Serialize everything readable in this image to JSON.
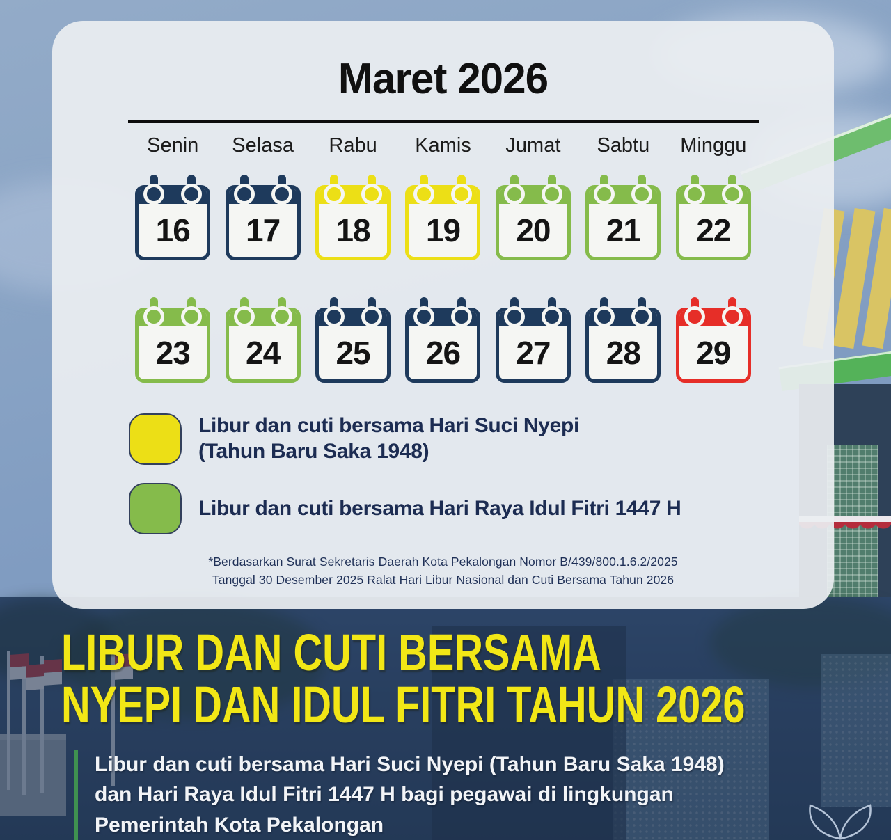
{
  "calendar": {
    "month_title": "Maret 2026",
    "day_headers": [
      "Senin",
      "Selasa",
      "Rabu",
      "Kamis",
      "Jumat",
      "Sabtu",
      "Minggu"
    ],
    "weeks": [
      [
        {
          "day": "16",
          "type": "workday"
        },
        {
          "day": "17",
          "type": "workday"
        },
        {
          "day": "18",
          "type": "nyepi"
        },
        {
          "day": "19",
          "type": "nyepi"
        },
        {
          "day": "20",
          "type": "idulfitri"
        },
        {
          "day": "21",
          "type": "idulfitri"
        },
        {
          "day": "22",
          "type": "idulfitri"
        }
      ],
      [
        {
          "day": "23",
          "type": "idulfitri"
        },
        {
          "day": "24",
          "type": "idulfitri"
        },
        {
          "day": "25",
          "type": "workday"
        },
        {
          "day": "26",
          "type": "workday"
        },
        {
          "day": "27",
          "type": "workday"
        },
        {
          "day": "28",
          "type": "workday"
        },
        {
          "day": "29",
          "type": "sunday"
        }
      ]
    ]
  },
  "legend": [
    {
      "type": "nyepi",
      "label": "Libur dan cuti bersama Hari Suci Nyepi\n(Tahun Baru Saka 1948)"
    },
    {
      "type": "idulfitri",
      "label": "Libur dan cuti bersama Hari Raya Idul Fitri 1447 H"
    }
  ],
  "footnote": {
    "line1": "*Berdasarkan Surat Sekretaris Daerah Kota Pekalongan Nomor B/439/800.1.6.2/2025",
    "line2": "Tanggal 30 Desember 2025 Ralat Hari Libur Nasional dan Cuti Bersama Tahun 2026"
  },
  "banner": {
    "title_line1": "LIBUR DAN CUTI BERSAMA",
    "title_line2": "NYEPI DAN IDUL FITRI TAHUN 2026",
    "description": "Libur dan cuti bersama Hari Suci Nyepi (Tahun Baru Saka 1948)\ndan Hari Raya Idul Fitri 1447 H bagi pegawai di lingkungan\nPemerintah Kota Pekalongan"
  },
  "colors": {
    "workday": "#1e3a5c",
    "nyepi": "#ecdf16",
    "idulfitri": "#85bb4b",
    "sunday": "#e62e28",
    "tile_body": "#f5f6f3",
    "banner_title": "#f2e716",
    "legend_text": "#1c2c52",
    "description_bar": "#3f9150"
  }
}
